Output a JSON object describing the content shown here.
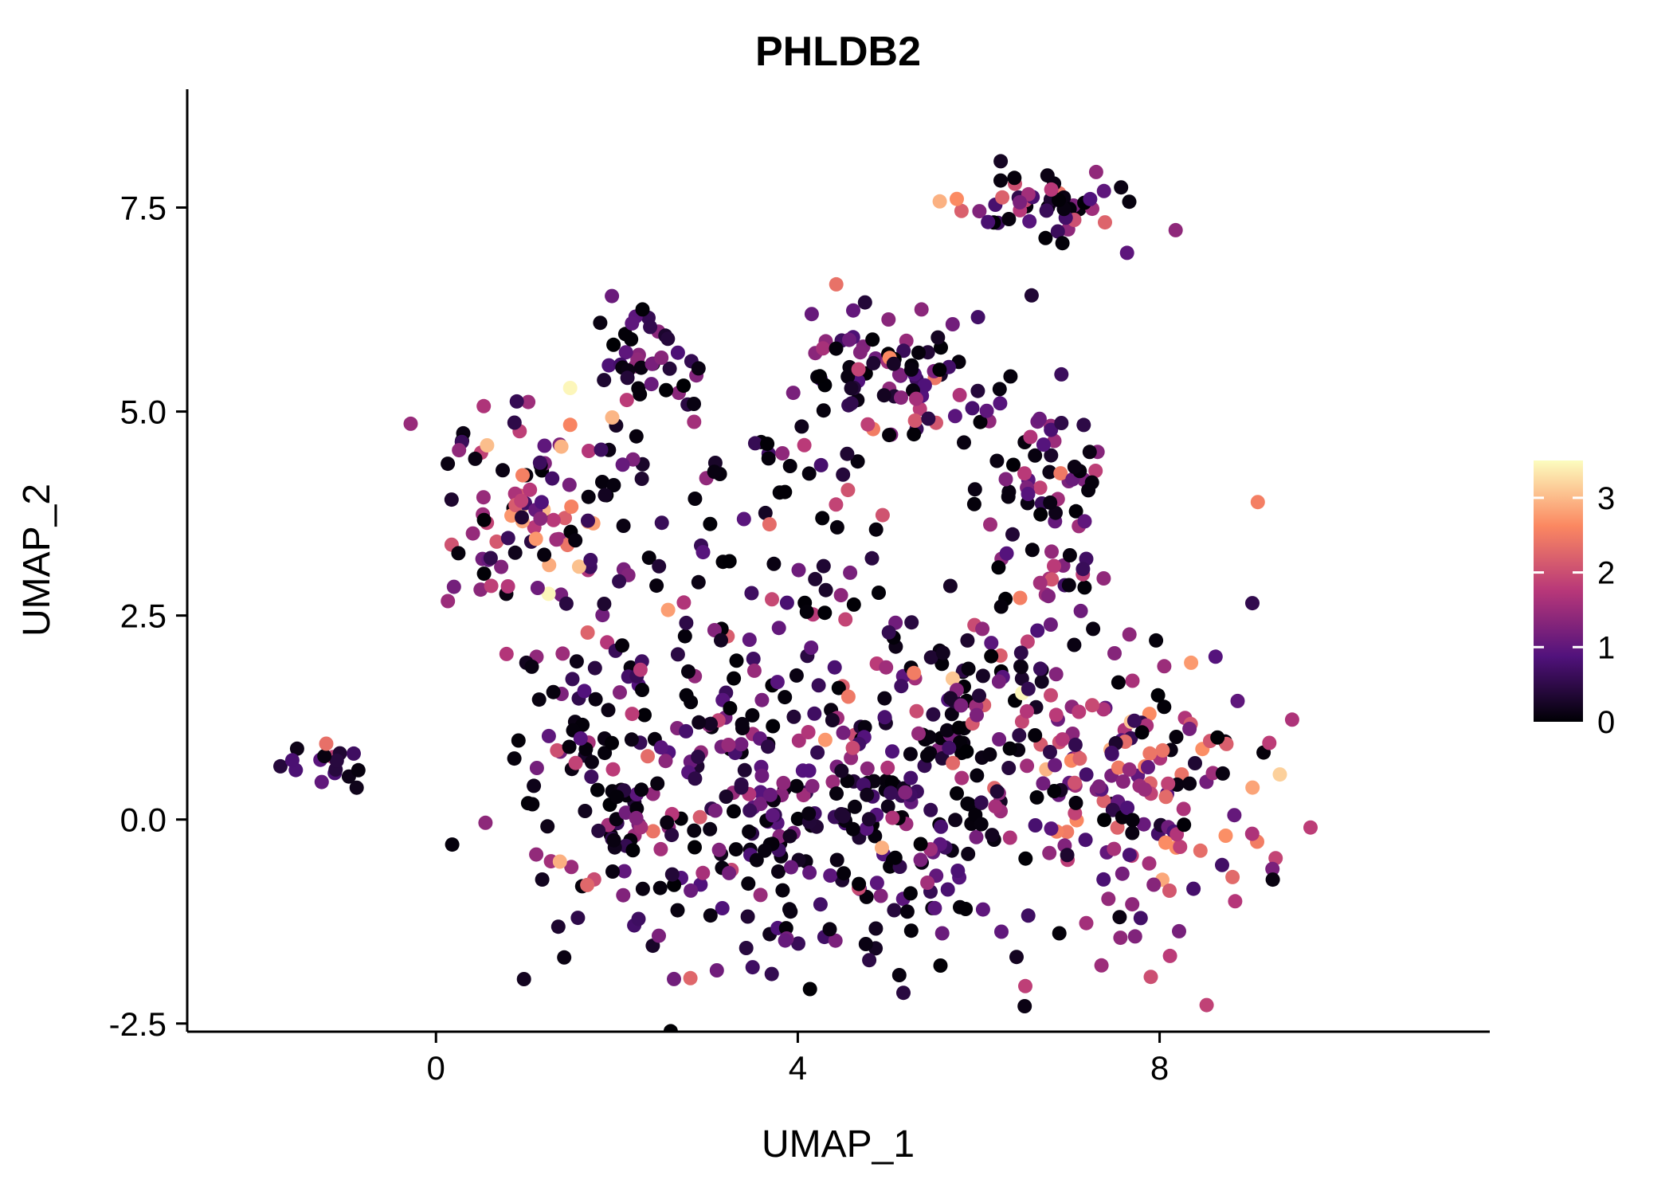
{
  "title": "PHLDB2",
  "chart_data": {
    "type": "scatter",
    "title": "PHLDB2",
    "subtitle": "",
    "xlabel": "UMAP_1",
    "ylabel": "UMAP_2",
    "x_range": [
      -2.75,
      11.65
    ],
    "y_range": [
      -2.6,
      8.95
    ],
    "x_ticks": [
      {
        "v": 0,
        "label": "0"
      },
      {
        "v": 4,
        "label": "4"
      },
      {
        "v": 8,
        "label": "8"
      }
    ],
    "y_ticks": [
      {
        "v": -2.5,
        "label": "-2.5"
      },
      {
        "v": 0,
        "label": "0.0"
      },
      {
        "v": 2.5,
        "label": "2.5"
      },
      {
        "v": 5,
        "label": "5.0"
      },
      {
        "v": 7.5,
        "label": "7.5"
      }
    ],
    "grid": false,
    "legend_position": "right",
    "point_radius_px": 9,
    "colorbar": {
      "vmin": 0,
      "vmax": 3.5,
      "ticks": [
        {
          "v": 0,
          "label": "0"
        },
        {
          "v": 1,
          "label": "1"
        },
        {
          "v": 2,
          "label": "2"
        },
        {
          "v": 3,
          "label": "3"
        }
      ]
    },
    "colormap": {
      "name": "magma",
      "stops": [
        [
          0,
          "#000004"
        ],
        [
          0.25,
          "#51127c"
        ],
        [
          0.5,
          "#b73779"
        ],
        [
          0.75,
          "#fb8861"
        ],
        [
          1,
          "#fcfdbf"
        ]
      ]
    },
    "n_points_estimate": 1145,
    "clusters": [
      {
        "name": "top-right",
        "cx": 6.85,
        "cy": 7.55,
        "sx": 0.45,
        "sy": 0.22,
        "n": 55,
        "p0": 0.3,
        "mean": 1.2,
        "sd": 0.7
      },
      {
        "name": "top-right-outliers",
        "cx": 6.15,
        "cy": 6.45,
        "sx": 0.25,
        "sy": 0.35,
        "n": 6,
        "p0": 0.2,
        "mean": 1.0,
        "sd": 0.5
      },
      {
        "name": "right-upper",
        "cx": 6.75,
        "cy": 4.3,
        "sx": 0.4,
        "sy": 0.45,
        "n": 50,
        "p0": 0.35,
        "mean": 0.9,
        "sd": 0.7
      },
      {
        "name": "right-large",
        "cx": 7.7,
        "cy": 0.45,
        "sx": 0.8,
        "sy": 0.95,
        "n": 170,
        "p0": 0.15,
        "mean": 1.6,
        "sd": 0.8
      },
      {
        "name": "top-small",
        "cx": 2.35,
        "cy": 5.75,
        "sx": 0.3,
        "sy": 0.3,
        "n": 40,
        "p0": 0.35,
        "mean": 0.8,
        "sd": 0.5
      },
      {
        "name": "top-center",
        "cx": 4.85,
        "cy": 5.5,
        "sx": 0.45,
        "sy": 0.4,
        "n": 75,
        "p0": 0.25,
        "mean": 1.2,
        "sd": 0.8
      },
      {
        "name": "left-upper",
        "cx": 1.0,
        "cy": 3.85,
        "sx": 0.5,
        "sy": 0.6,
        "n": 95,
        "p0": 0.2,
        "mean": 1.5,
        "sd": 0.9
      },
      {
        "name": "far-left",
        "cx": -1.15,
        "cy": 0.7,
        "sx": 0.25,
        "sy": 0.1,
        "n": 16,
        "p0": 0.3,
        "mean": 1.0,
        "sd": 0.7
      },
      {
        "name": "central-large",
        "cx": 4.3,
        "cy": 0.1,
        "sx": 1.35,
        "sy": 1.0,
        "n": 380,
        "p0": 0.35,
        "mean": 0.8,
        "sd": 0.7
      },
      {
        "name": "left-mid",
        "cx": 1.9,
        "cy": 0.9,
        "sx": 0.55,
        "sy": 0.85,
        "n": 90,
        "p0": 0.25,
        "mean": 1.2,
        "sd": 0.9
      },
      {
        "name": "mid-scatter",
        "cx": 3.6,
        "cy": 2.7,
        "sx": 1.0,
        "sy": 0.55,
        "n": 55,
        "p0": 0.3,
        "mean": 0.9,
        "sd": 0.7
      },
      {
        "name": "upper-scatter",
        "cx": 3.6,
        "cy": 4.3,
        "sx": 1.0,
        "sy": 0.3,
        "n": 35,
        "p0": 0.3,
        "mean": 1.0,
        "sd": 0.8
      },
      {
        "name": "right-scatter",
        "cx": 6.6,
        "cy": 2.7,
        "sx": 0.45,
        "sy": 0.55,
        "n": 30,
        "p0": 0.3,
        "mean": 1.2,
        "sd": 0.8
      },
      {
        "name": "right-bridge",
        "cx": 5.9,
        "cy": 1.6,
        "sx": 0.5,
        "sy": 0.6,
        "n": 40,
        "p0": 0.3,
        "mean": 1.0,
        "sd": 0.8
      },
      {
        "name": "sparse-upper-right",
        "cx": 6.0,
        "cy": 5.3,
        "sx": 0.3,
        "sy": 0.3,
        "n": 8,
        "p0": 0.3,
        "mean": 0.8,
        "sd": 0.6
      }
    ]
  }
}
